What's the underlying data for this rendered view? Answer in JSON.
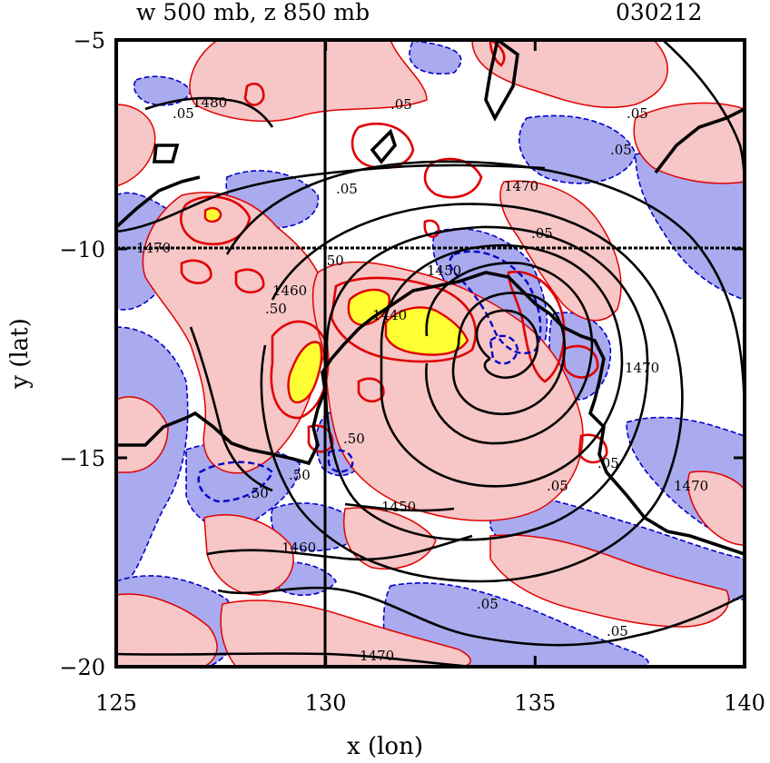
{
  "chart_data": {
    "type": "contour-map",
    "title_left": "w 500 mb, z 850 mb",
    "title_right": "030212",
    "xlabel": "x (lon)",
    "ylabel": "y (lat)",
    "xlim": [
      125,
      140
    ],
    "ylim": [
      -20,
      -5
    ],
    "x_ticks": [
      "125",
      "130",
      "135",
      "140"
    ],
    "y_ticks": [
      "−5",
      "−10",
      "−15",
      "−20"
    ],
    "reference_lines": {
      "lon": 130,
      "lat": -10
    },
    "colors": {
      "positive_w_fill": "#f7c6c6",
      "negative_w_fill": "#aaaaee",
      "strong_w_fill": "#ffff33",
      "positive_contour": "#e00000",
      "negative_contour": "#0000cc",
      "height_contour": "#000000",
      "coastline": "#000000"
    },
    "w_contour_labels": [
      ".05",
      ".05",
      ".05",
      ".05",
      ".05",
      ".05",
      ".05",
      ".05",
      ".05",
      ".05",
      ".50",
      ".50",
      ".50",
      ".50",
      ".50"
    ],
    "z_contour_labels": [
      "1480",
      "1470",
      "1470",
      "1470",
      "1470",
      "1460",
      "1460",
      "1450",
      "1450",
      "1440",
      "1470"
    ],
    "low_center": {
      "lon": 134.3,
      "lat": -12.8
    },
    "strong_updraft_areas": [
      {
        "lon": 129.4,
        "lat": -12.9
      },
      {
        "lon": 131.3,
        "lat": -11.5
      },
      {
        "lon": 132.5,
        "lat": -12.0
      },
      {
        "lon": 127.3,
        "lat": -9.4
      }
    ]
  }
}
